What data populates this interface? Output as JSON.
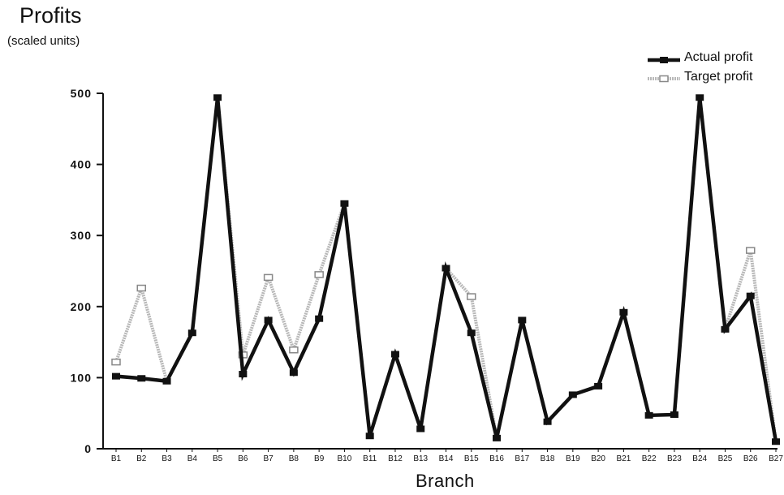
{
  "chart_data": {
    "type": "line",
    "title": "Profits",
    "subtitle": "(scaled units)",
    "xlabel": "Branch",
    "ylabel": "",
    "ylim": [
      0,
      500
    ],
    "yticks": [
      "0",
      "100",
      "200",
      "300",
      "400",
      "500"
    ],
    "grid": false,
    "legend_position": "top-right",
    "categories": [
      "B1",
      "B2",
      "B3",
      "B4",
      "B5",
      "B6",
      "B7",
      "B8",
      "B9",
      "B10",
      "B11",
      "B12",
      "B13",
      "B14",
      "B15",
      "B16",
      "B17",
      "B18",
      "B19",
      "B20",
      "B21",
      "B22",
      "B23",
      "B24",
      "B25",
      "B26",
      "B27"
    ],
    "series": [
      {
        "name": "Actual profit",
        "color": "#111111",
        "values": [
          102,
          99,
          95,
          163,
          494,
          105,
          181,
          107,
          183,
          345,
          18,
          133,
          28,
          254,
          163,
          15,
          181,
          38,
          76,
          88,
          192,
          47,
          48,
          494,
          168,
          215,
          10
        ]
      },
      {
        "name": "Target profit",
        "color": "#b8b8b8",
        "values": [
          122,
          226,
          95,
          163,
          494,
          132,
          241,
          139,
          245,
          345,
          18,
          133,
          28,
          254,
          214,
          15,
          181,
          38,
          76,
          88,
          192,
          47,
          48,
          494,
          168,
          279,
          10
        ]
      }
    ]
  }
}
